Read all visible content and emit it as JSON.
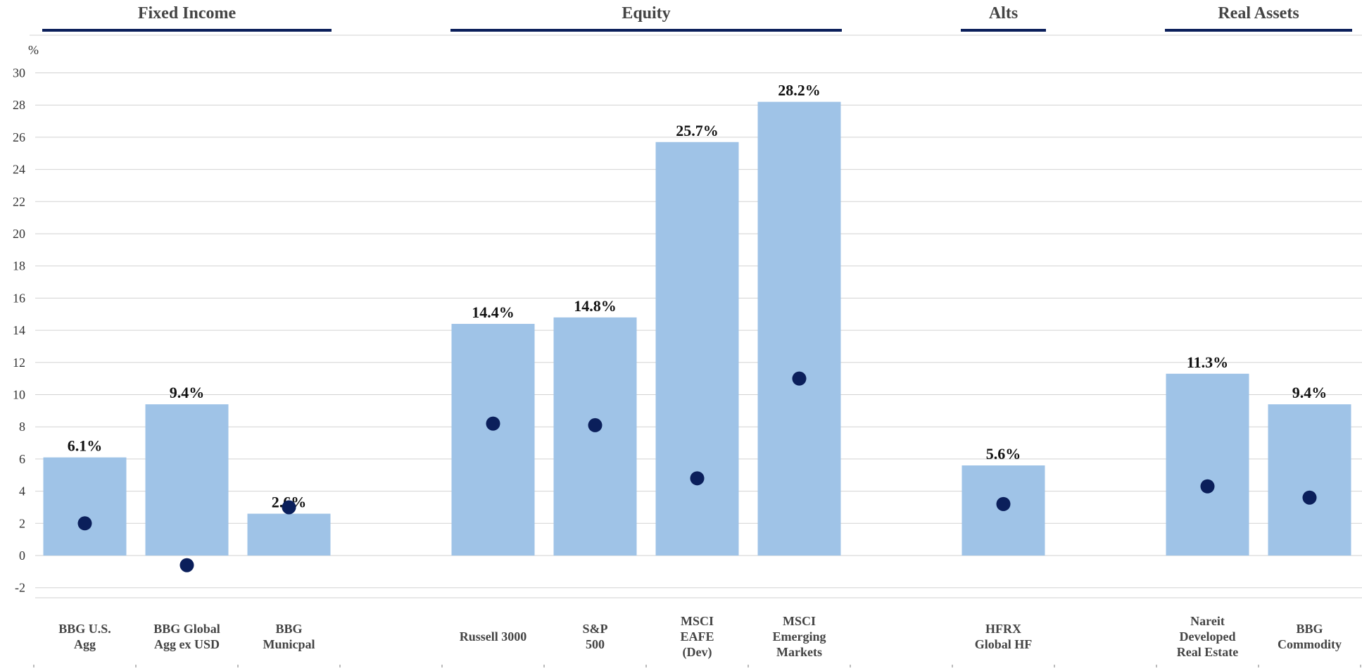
{
  "chart_data": {
    "type": "bar",
    "y_unit": "%",
    "ylim": [
      -2,
      30
    ],
    "y_ticks": [
      30,
      28,
      26,
      24,
      22,
      20,
      18,
      16,
      14,
      12,
      10,
      8,
      6,
      4,
      2,
      0,
      -2
    ],
    "grid": true,
    "colors": {
      "bar": "#9fc3e7",
      "dot": "#0b1f5b",
      "group_rule": "#0b1f5b",
      "grid": "#d2d2d2"
    },
    "groups": [
      {
        "name": "Fixed Income",
        "slots": [
          0,
          2
        ]
      },
      {
        "name": "Equity",
        "slots": [
          4,
          7
        ]
      },
      {
        "name": "Alts",
        "slots": [
          9,
          9
        ]
      },
      {
        "name": "Real Assets",
        "slots": [
          11,
          12
        ]
      }
    ],
    "categories": [
      {
        "label": [
          "BBG U.S.",
          "Agg"
        ],
        "slot": 0,
        "bar": 6.1,
        "bar_label": "6.1%",
        "dot": 2.0
      },
      {
        "label": [
          "BBG Global",
          "Agg ex USD"
        ],
        "slot": 1,
        "bar": 9.4,
        "bar_label": "9.4%",
        "dot": -0.6
      },
      {
        "label": [
          "BBG",
          "Municpal"
        ],
        "slot": 2,
        "bar": 2.6,
        "bar_label": "2.6%",
        "dot": 3.0
      },
      {
        "label": [
          "Russell 3000"
        ],
        "slot": 4,
        "bar": 14.4,
        "bar_label": "14.4%",
        "dot": 8.2
      },
      {
        "label": [
          "S&P",
          "500"
        ],
        "slot": 5,
        "bar": 14.8,
        "bar_label": "14.8%",
        "dot": 8.1
      },
      {
        "label": [
          "MSCI",
          "EAFE",
          "(Dev)"
        ],
        "slot": 6,
        "bar": 25.7,
        "bar_label": "25.7%",
        "dot": 4.8
      },
      {
        "label": [
          "MSCI",
          "Emerging",
          "Markets"
        ],
        "slot": 7,
        "bar": 28.2,
        "bar_label": "28.2%",
        "dot": 11.0
      },
      {
        "label": [
          "HFRX",
          "Global HF"
        ],
        "slot": 9,
        "bar": 5.6,
        "bar_label": "5.6%",
        "dot": 3.2
      },
      {
        "label": [
          "Nareit",
          "Developed",
          "Real Estate"
        ],
        "slot": 11,
        "bar": 11.3,
        "bar_label": "11.3%",
        "dot": 4.3
      },
      {
        "label": [
          "BBG",
          "Commodity"
        ],
        "slot": 12,
        "bar": 9.4,
        "bar_label": "9.4%",
        "dot": 3.6
      }
    ]
  }
}
